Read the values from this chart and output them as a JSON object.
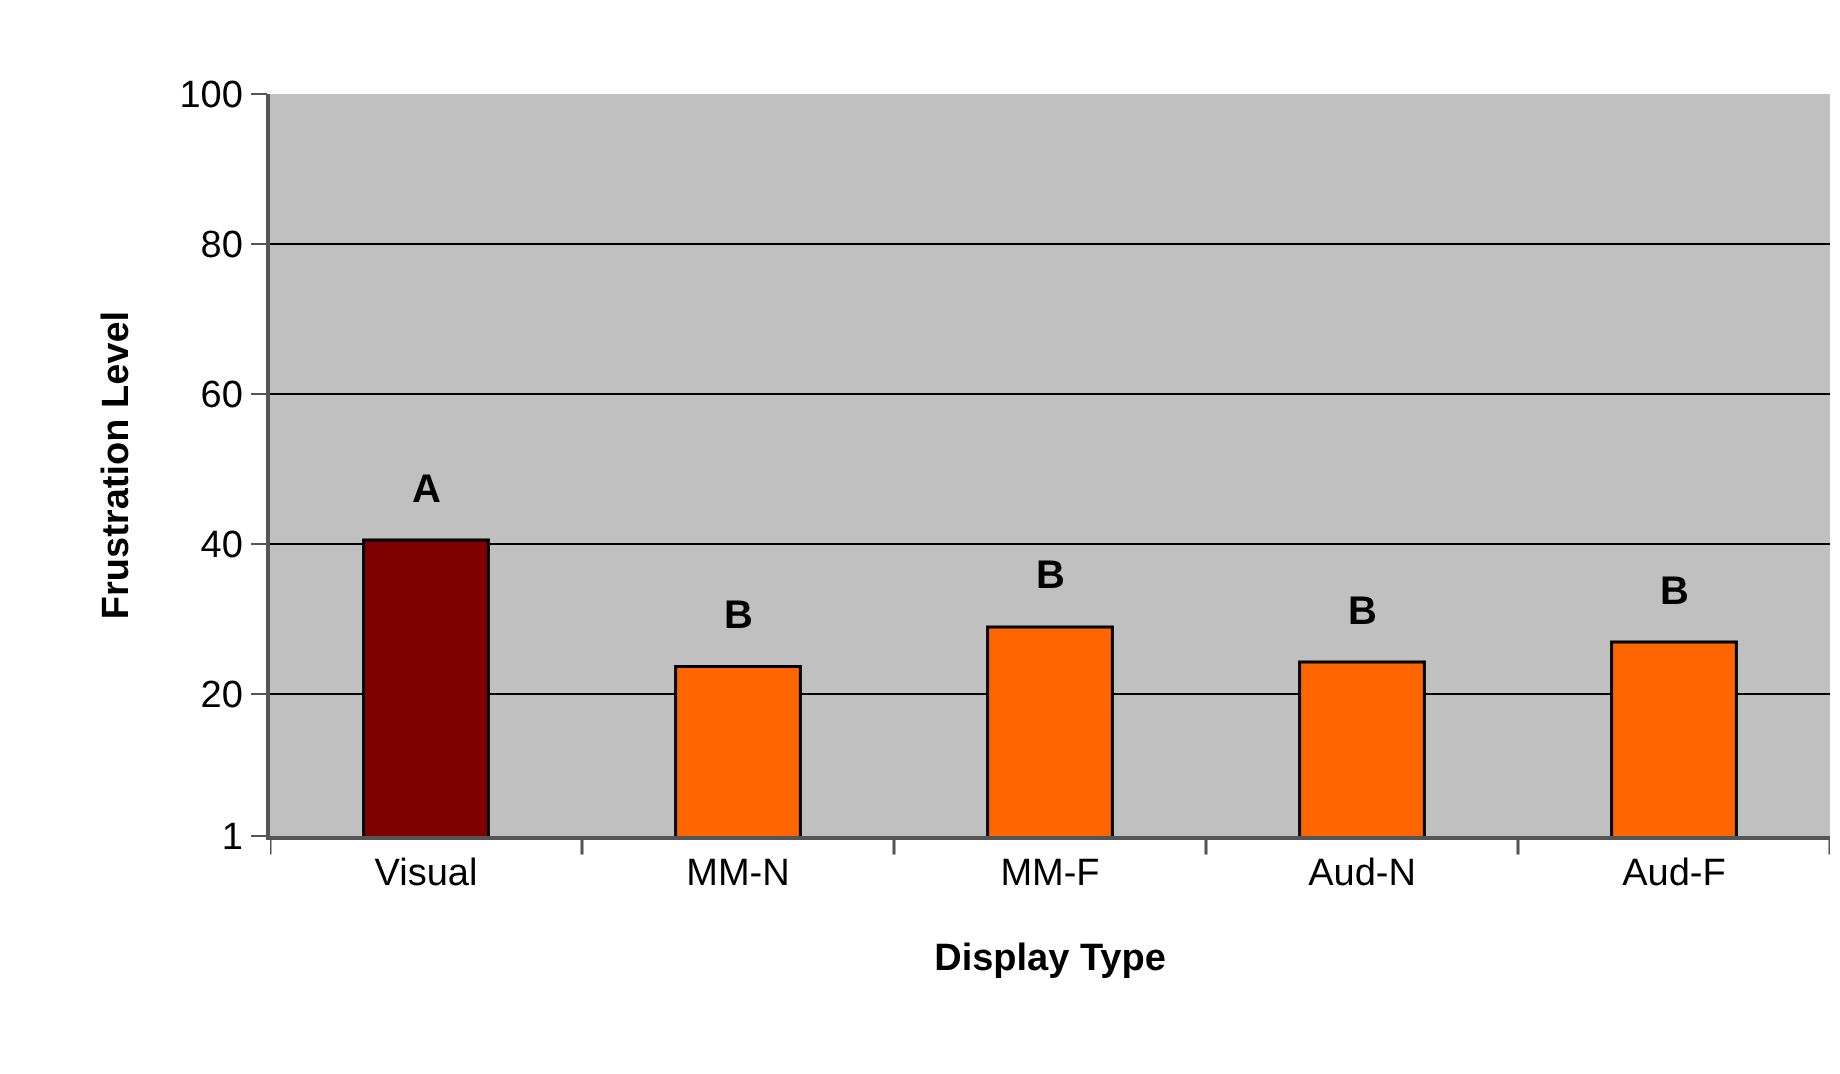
{
  "chart_data": {
    "type": "bar",
    "xlabel": "Display Type",
    "ylabel": "Frustration Level",
    "categories": [
      "Visual",
      "MM-N",
      "MM-F",
      "Aud-N",
      "Aud-F"
    ],
    "values": [
      40.5,
      23.6,
      28.9,
      24.2,
      26.9
    ],
    "colors": [
      "#800000",
      "#ff6600",
      "#ff6600",
      "#ff6600",
      "#ff6600"
    ],
    "ylim": [
      1,
      100
    ],
    "yticks": [
      1,
      20,
      40,
      60,
      80,
      100
    ],
    "grid": "y",
    "legend": false,
    "annotations": [
      {
        "text": "A",
        "x": "Visual",
        "y": 40.5
      },
      {
        "text": "B",
        "x": "MM-N",
        "y": 23.6
      },
      {
        "text": "B",
        "x": "MM-F",
        "y": 28.9
      },
      {
        "text": "B",
        "x": "Aud-N",
        "y": 24.2
      },
      {
        "text": "B",
        "x": "Aud-F",
        "y": 26.9
      }
    ]
  }
}
